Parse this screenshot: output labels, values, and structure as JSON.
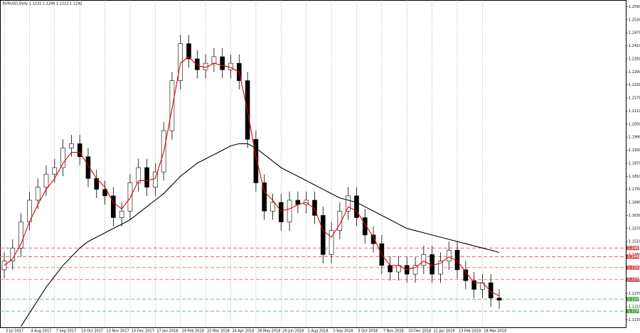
{
  "chart_data": {
    "type": "candlestick",
    "title": "EURUSD,Daily 1.1232 1.1248 1.1222 1.1242",
    "categories": [
      "3 Jul 2017",
      null,
      null,
      "4 Aug 2017",
      null,
      null,
      "7 Sep 2017",
      null,
      null,
      "10 Oct 2017",
      null,
      null,
      "13 Nov 2017",
      null,
      null,
      "15 Dec 2017",
      null,
      null,
      "17 Jan 2018",
      null,
      null,
      "19 Feb 2018",
      null,
      null,
      "22 Mar 2018",
      null,
      null,
      "24 Apr 2018",
      null,
      null,
      "28 May 2018",
      null,
      null,
      "29 Jun 2018",
      null,
      null,
      "1 Aug 2018",
      null,
      null,
      "3 Sep 2018",
      null,
      null,
      "5 Oct 2018",
      null,
      null,
      "7 Nov 2018",
      null,
      null,
      "10 Dec 2018",
      null,
      null,
      "11 Jan 2019",
      null,
      null,
      "13 Feb 2019",
      null,
      null,
      "18 Mar 2019",
      null,
      null
    ],
    "open": [
      1.138,
      1.142,
      1.148,
      1.16,
      1.17,
      1.176,
      1.182,
      1.185,
      1.194,
      1.196,
      1.19,
      1.18,
      1.175,
      1.172,
      1.162,
      1.165,
      1.178,
      1.185,
      1.176,
      1.183,
      1.202,
      1.225,
      1.242,
      1.235,
      1.23,
      1.233,
      1.236,
      1.23,
      1.233,
      1.225,
      1.198,
      1.178,
      1.165,
      1.169,
      1.16,
      1.17,
      1.168,
      1.17,
      1.163,
      1.145,
      1.156,
      1.165,
      1.172,
      1.162,
      1.154,
      1.15,
      1.14,
      1.137,
      1.14,
      1.136,
      1.14,
      1.145,
      1.136,
      1.142,
      1.147,
      1.138,
      1.133,
      1.129,
      1.132,
      1.125
    ],
    "high": [
      1.146,
      1.152,
      1.164,
      1.174,
      1.18,
      1.186,
      1.189,
      1.198,
      1.2,
      1.2,
      1.194,
      1.184,
      1.179,
      1.176,
      1.169,
      1.182,
      1.189,
      1.189,
      1.187,
      1.206,
      1.229,
      1.246,
      1.246,
      1.239,
      1.237,
      1.24,
      1.24,
      1.237,
      1.237,
      1.229,
      1.202,
      1.182,
      1.173,
      1.173,
      1.174,
      1.174,
      1.174,
      1.174,
      1.167,
      1.16,
      1.169,
      1.176,
      1.176,
      1.166,
      1.158,
      1.154,
      1.144,
      1.144,
      1.144,
      1.144,
      1.149,
      1.149,
      1.146,
      1.151,
      1.151,
      1.142,
      1.137,
      1.136,
      1.136,
      1.129
    ],
    "low": [
      1.134,
      1.138,
      1.144,
      1.156,
      1.166,
      1.172,
      1.178,
      1.181,
      1.19,
      1.186,
      1.176,
      1.171,
      1.168,
      1.158,
      1.158,
      1.161,
      1.174,
      1.172,
      1.172,
      1.179,
      1.198,
      1.221,
      1.231,
      1.226,
      1.226,
      1.229,
      1.226,
      1.226,
      1.221,
      1.194,
      1.174,
      1.161,
      1.161,
      1.156,
      1.156,
      1.164,
      1.164,
      1.159,
      1.141,
      1.141,
      1.152,
      1.161,
      1.158,
      1.15,
      1.146,
      1.136,
      1.133,
      1.133,
      1.132,
      1.132,
      1.136,
      1.132,
      1.132,
      1.138,
      1.134,
      1.129,
      1.125,
      1.125,
      1.121,
      1.12
    ],
    "close": [
      1.142,
      1.148,
      1.16,
      1.17,
      1.176,
      1.182,
      1.185,
      1.194,
      1.196,
      1.19,
      1.18,
      1.175,
      1.172,
      1.162,
      1.165,
      1.178,
      1.185,
      1.176,
      1.183,
      1.202,
      1.225,
      1.242,
      1.235,
      1.23,
      1.233,
      1.236,
      1.23,
      1.233,
      1.225,
      1.198,
      1.178,
      1.165,
      1.169,
      1.16,
      1.17,
      1.168,
      1.17,
      1.163,
      1.145,
      1.156,
      1.165,
      1.172,
      1.162,
      1.154,
      1.15,
      1.14,
      1.137,
      1.14,
      1.136,
      1.14,
      1.145,
      1.136,
      1.142,
      1.147,
      1.138,
      1.133,
      1.129,
      1.132,
      1.125,
      1.124
    ],
    "series": [
      {
        "color": "#e00000",
        "values": [
          1.14,
          1.143,
          1.15,
          1.16,
          1.168,
          1.175,
          1.18,
          1.187,
          1.192,
          1.192,
          1.186,
          1.18,
          1.176,
          1.169,
          1.166,
          1.171,
          1.179,
          1.179,
          1.18,
          1.192,
          1.212,
          1.233,
          1.236,
          1.232,
          1.231,
          1.233,
          1.232,
          1.231,
          1.229,
          1.211,
          1.19,
          1.174,
          1.17,
          1.165,
          1.166,
          1.168,
          1.169,
          1.166,
          1.156,
          1.153,
          1.159,
          1.167,
          1.165,
          1.159,
          1.153,
          1.145,
          1.14,
          1.14,
          1.138,
          1.139,
          1.142,
          1.14,
          1.141,
          1.144,
          1.142,
          1.137,
          1.132,
          1.132,
          1.128,
          1.126
        ]
      },
      {
        "color": "#000000",
        "values": [
          null,
          null,
          1.112,
          1.118,
          1.124,
          1.13,
          1.135,
          1.14,
          1.144,
          1.148,
          1.151,
          1.153,
          1.155,
          1.157,
          1.159,
          1.161,
          1.164,
          1.167,
          1.17,
          1.173,
          1.177,
          1.181,
          1.184,
          1.187,
          1.189,
          1.191,
          1.193,
          1.195,
          1.196,
          1.196,
          1.194,
          1.191,
          1.188,
          1.185,
          1.183,
          1.181,
          1.179,
          1.177,
          1.175,
          1.173,
          1.171,
          1.17,
          1.169,
          1.167,
          1.165,
          1.163,
          1.161,
          1.159,
          1.157,
          1.156,
          1.155,
          1.154,
          1.153,
          1.152,
          1.151,
          1.15,
          1.149,
          1.148,
          1.147,
          1.146
        ]
      }
    ],
    "levels": [
      {
        "value": 1.148,
        "label": "1.1480",
        "color": "#e05050"
      },
      {
        "value": 1.144,
        "label": "1.1440",
        "color": "#e05050"
      },
      {
        "value": 1.139,
        "label": "1.1390",
        "color": "#e05050"
      },
      {
        "value": 1.1335,
        "label": "1.1335",
        "color": "#e05050"
      },
      {
        "value": 1.1245,
        "label": "1.1245",
        "color": "#40b040"
      },
      {
        "value": 1.119,
        "label": "1.1190",
        "color": "#40b040"
      }
    ],
    "ylim": [
      1.1112,
      1.2621
    ],
    "yticks": [
      {
        "value": 1.115,
        "label": "1.1150"
      },
      {
        "value": 1.121,
        "label": "1.1210"
      },
      {
        "value": 1.127,
        "label": "1.1270"
      },
      {
        "value": 1.133,
        "label": "1.1330"
      },
      {
        "value": 1.139,
        "label": "1.1390"
      },
      {
        "value": 1.145,
        "label": "1.1450"
      },
      {
        "value": 1.151,
        "label": "1.1510"
      },
      {
        "value": 1.157,
        "label": "1.1570"
      },
      {
        "value": 1.163,
        "label": "1.1630"
      },
      {
        "value": 1.169,
        "label": "1.1690"
      },
      {
        "value": 1.175,
        "label": "1.1750"
      },
      {
        "value": 1.181,
        "label": "1.1810"
      },
      {
        "value": 1.187,
        "label": "1.1870"
      },
      {
        "value": 1.193,
        "label": "1.1930"
      },
      {
        "value": 1.199,
        "label": "1.1990"
      },
      {
        "value": 1.205,
        "label": "1.2050"
      },
      {
        "value": 1.211,
        "label": "1.2110"
      },
      {
        "value": 1.217,
        "label": "1.2170"
      },
      {
        "value": 1.223,
        "label": "1.2230"
      },
      {
        "value": 1.229,
        "label": "1.2290"
      },
      {
        "value": 1.235,
        "label": "1.2350"
      },
      {
        "value": 1.241,
        "label": "1.2410"
      },
      {
        "value": 1.247,
        "label": "1.2470"
      },
      {
        "value": 1.253,
        "label": "1.2530"
      },
      {
        "value": 1.259,
        "label": "1.2590"
      }
    ]
  }
}
